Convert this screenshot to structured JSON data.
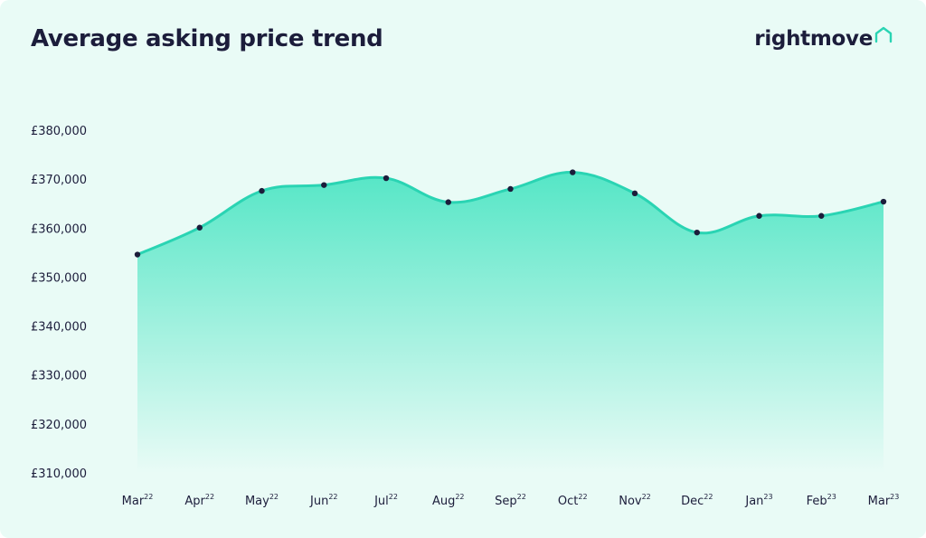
{
  "header": {
    "title": "Average asking price trend",
    "brand": "rightmove",
    "brand_icon": "house-outline-icon"
  },
  "chart_data": {
    "type": "area",
    "title": "Average asking price trend",
    "xlabel": "",
    "ylabel": "",
    "categories": [
      {
        "month": "Mar",
        "year": "22"
      },
      {
        "month": "Apr",
        "year": "22"
      },
      {
        "month": "May",
        "year": "22"
      },
      {
        "month": "Jun",
        "year": "22"
      },
      {
        "month": "Jul",
        "year": "22"
      },
      {
        "month": "Aug",
        "year": "22"
      },
      {
        "month": "Sep",
        "year": "22"
      },
      {
        "month": "Oct",
        "year": "22"
      },
      {
        "month": "Nov",
        "year": "22"
      },
      {
        "month": "Dec",
        "year": "22"
      },
      {
        "month": "Jan",
        "year": "23"
      },
      {
        "month": "Feb",
        "year": "23"
      },
      {
        "month": "Mar",
        "year": "23"
      }
    ],
    "values": [
      354600,
      360100,
      367600,
      368800,
      370200,
      365300,
      368000,
      371400,
      367100,
      359100,
      362500,
      362500,
      365400
    ],
    "ylim": [
      310000,
      380000
    ],
    "yticks": [
      310000,
      320000,
      330000,
      340000,
      350000,
      360000,
      370000,
      380000
    ],
    "ytick_labels": [
      "£310,000",
      "£320,000",
      "£330,000",
      "£340,000",
      "£350,000",
      "£360,000",
      "£370,000",
      "£380,000"
    ],
    "grid": false,
    "legend": "none",
    "colors": {
      "line": "#2ad4b3",
      "fill_top": "#55e6c6",
      "fill_bottom": "#e9fbf6",
      "marker": "#1c1d3b",
      "text": "#1c1d3b",
      "background": "#e9fbf6"
    }
  }
}
